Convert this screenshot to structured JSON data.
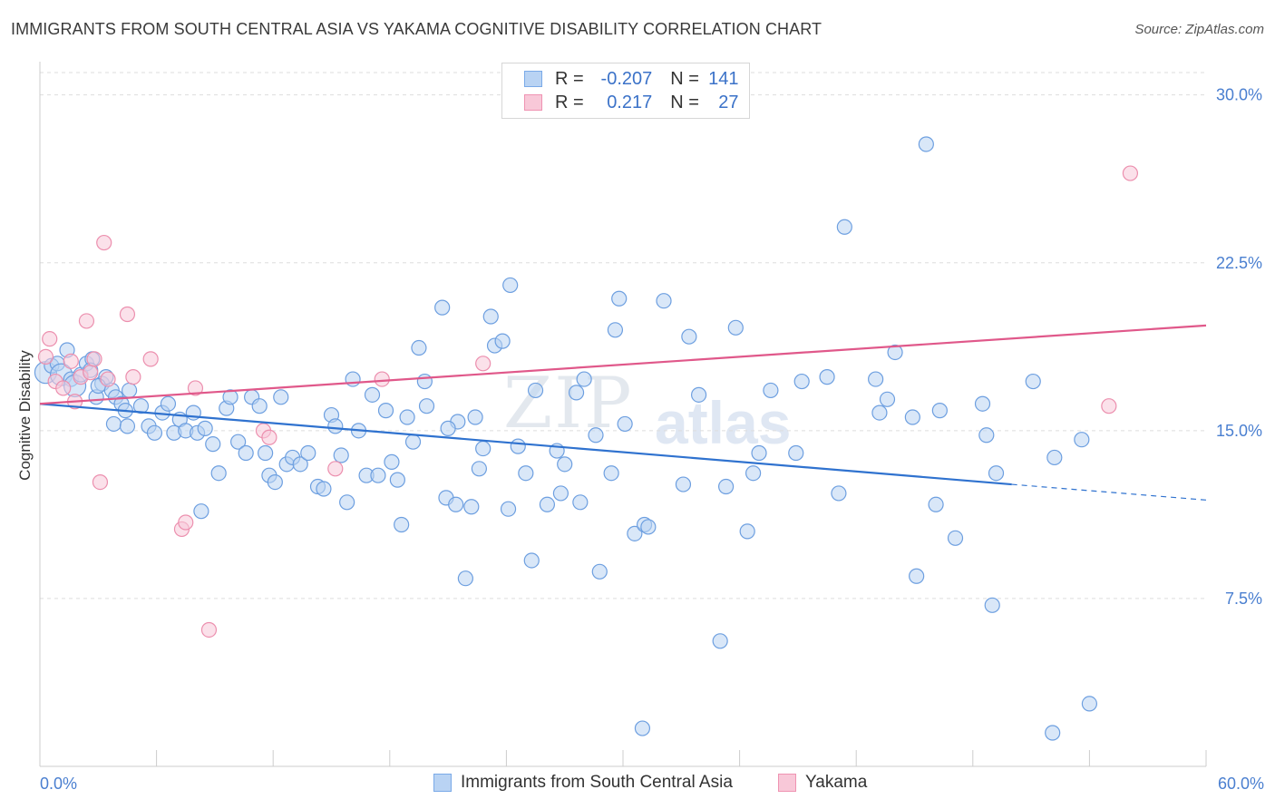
{
  "title": "IMMIGRANTS FROM SOUTH CENTRAL ASIA VS YAKAMA COGNITIVE DISABILITY CORRELATION CHART",
  "source": "Source: ZipAtlas.com",
  "watermark": {
    "zip": "ZIP",
    "atlas": "atlas"
  },
  "legend": {
    "rows": [
      {
        "r_label": "R =",
        "r_value": "-0.207",
        "n_label": "N =",
        "n_value": "141",
        "color": "#7aaae8",
        "fill": "#b9d3f3"
      },
      {
        "r_label": "R =",
        "r_value": "0.217",
        "n_label": "N =",
        "n_value": "27",
        "color": "#ef93b2",
        "fill": "#f8c8d8"
      }
    ]
  },
  "bottom_legend": [
    {
      "label": "Immigrants from South Central Asia"
    },
    {
      "label": "Yakama"
    }
  ],
  "chart_data": {
    "type": "scatter",
    "title": "IMMIGRANTS FROM SOUTH CENTRAL ASIA VS YAKAMA COGNITIVE DISABILITY CORRELATION CHART",
    "xlabel": "",
    "ylabel": "Cognitive Disability",
    "xlim": [
      0,
      60
    ],
    "ylim": [
      0,
      31
    ],
    "x_tick_labels": [
      "0.0%",
      "60.0%"
    ],
    "y_ticks": [
      7.5,
      15.0,
      22.5,
      30.0
    ],
    "y_tick_labels": [
      "7.5%",
      "15.0%",
      "22.5%",
      "30.0%"
    ],
    "grid": "horizontal dashed",
    "legend_position": "top-center",
    "series": [
      {
        "name": "Immigrants from South Central Asia",
        "color": "#6d9fe0",
        "fill": "#b9d3f3",
        "trend": {
          "x": [
            0,
            50
          ],
          "y": [
            16.2,
            12.6
          ],
          "dashed_to": [
            60,
            11.9
          ],
          "color": "#2f72cf"
        },
        "points": [
          [
            0.3,
            17.6
          ],
          [
            0.6,
            17.9
          ],
          [
            0.9,
            18.0
          ],
          [
            1.1,
            17.5
          ],
          [
            1.4,
            18.6
          ],
          [
            1.6,
            17.3
          ],
          [
            1.8,
            17.0
          ],
          [
            2.1,
            17.5
          ],
          [
            2.4,
            18.0
          ],
          [
            2.7,
            18.2
          ],
          [
            2.9,
            16.5
          ],
          [
            3.2,
            17.1
          ],
          [
            3.4,
            17.4
          ],
          [
            3.7,
            16.8
          ],
          [
            3.9,
            16.5
          ],
          [
            4.2,
            16.2
          ],
          [
            4.4,
            15.9
          ],
          [
            4.6,
            16.8
          ],
          [
            2.6,
            17.7
          ],
          [
            3.0,
            17.0
          ],
          [
            3.8,
            15.3
          ],
          [
            4.5,
            15.2
          ],
          [
            5.2,
            16.1
          ],
          [
            5.6,
            15.2
          ],
          [
            5.9,
            14.9
          ],
          [
            6.3,
            15.8
          ],
          [
            6.6,
            16.2
          ],
          [
            6.9,
            14.9
          ],
          [
            7.2,
            15.5
          ],
          [
            7.5,
            15.0
          ],
          [
            7.9,
            15.8
          ],
          [
            8.1,
            14.9
          ],
          [
            8.5,
            15.1
          ],
          [
            8.9,
            14.4
          ],
          [
            9.2,
            13.1
          ],
          [
            9.6,
            16.0
          ],
          [
            9.8,
            16.5
          ],
          [
            10.2,
            14.5
          ],
          [
            10.6,
            14.0
          ],
          [
            10.9,
            16.5
          ],
          [
            11.3,
            16.1
          ],
          [
            11.6,
            14.0
          ],
          [
            11.8,
            13.0
          ],
          [
            12.1,
            12.7
          ],
          [
            12.4,
            16.5
          ],
          [
            12.7,
            13.5
          ],
          [
            13.0,
            13.8
          ],
          [
            13.4,
            13.5
          ],
          [
            13.8,
            14.0
          ],
          [
            14.3,
            12.5
          ],
          [
            14.6,
            12.4
          ],
          [
            15.0,
            15.7
          ],
          [
            15.2,
            15.2
          ],
          [
            15.5,
            13.9
          ],
          [
            15.8,
            11.8
          ],
          [
            16.1,
            17.3
          ],
          [
            16.4,
            15.0
          ],
          [
            16.8,
            13.0
          ],
          [
            17.1,
            16.6
          ],
          [
            17.4,
            13.0
          ],
          [
            17.8,
            15.9
          ],
          [
            18.1,
            13.6
          ],
          [
            18.4,
            12.8
          ],
          [
            18.6,
            10.8
          ],
          [
            18.9,
            15.6
          ],
          [
            19.2,
            14.5
          ],
          [
            19.5,
            18.7
          ],
          [
            19.8,
            17.2
          ],
          [
            19.9,
            16.1
          ],
          [
            20.7,
            20.5
          ],
          [
            20.9,
            12.0
          ],
          [
            21.4,
            11.7
          ],
          [
            21.5,
            15.4
          ],
          [
            21.9,
            8.4
          ],
          [
            22.2,
            11.6
          ],
          [
            22.4,
            15.6
          ],
          [
            22.6,
            13.3
          ],
          [
            22.8,
            14.2
          ],
          [
            23.2,
            20.1
          ],
          [
            23.4,
            18.8
          ],
          [
            23.8,
            19.0
          ],
          [
            24.2,
            21.5
          ],
          [
            24.6,
            14.3
          ],
          [
            25.0,
            13.1
          ],
          [
            25.3,
            9.2
          ],
          [
            25.5,
            16.8
          ],
          [
            26.1,
            11.7
          ],
          [
            26.6,
            14.1
          ],
          [
            27.0,
            13.5
          ],
          [
            27.6,
            16.7
          ],
          [
            27.8,
            11.8
          ],
          [
            28.0,
            17.3
          ],
          [
            28.6,
            14.8
          ],
          [
            28.8,
            8.7
          ],
          [
            29.4,
            13.1
          ],
          [
            29.6,
            19.5
          ],
          [
            29.8,
            20.9
          ],
          [
            30.6,
            10.4
          ],
          [
            31.1,
            10.8
          ],
          [
            31.3,
            10.7
          ],
          [
            31.0,
            1.7
          ],
          [
            32.1,
            20.8
          ],
          [
            33.4,
            19.2
          ],
          [
            33.9,
            16.6
          ],
          [
            35.0,
            5.6
          ],
          [
            35.3,
            12.5
          ],
          [
            35.8,
            19.6
          ],
          [
            36.4,
            10.5
          ],
          [
            37.0,
            14.0
          ],
          [
            37.6,
            16.8
          ],
          [
            38.9,
            14.0
          ],
          [
            40.5,
            17.4
          ],
          [
            41.1,
            12.2
          ],
          [
            41.4,
            24.1
          ],
          [
            43.2,
            15.8
          ],
          [
            43.6,
            16.4
          ],
          [
            44.0,
            18.5
          ],
          [
            44.9,
            15.6
          ],
          [
            45.1,
            8.5
          ],
          [
            45.6,
            27.8
          ],
          [
            46.1,
            11.7
          ],
          [
            46.3,
            15.9
          ],
          [
            47.1,
            10.2
          ],
          [
            48.5,
            16.2
          ],
          [
            49.0,
            7.2
          ],
          [
            48.7,
            14.8
          ],
          [
            49.2,
            13.1
          ],
          [
            51.1,
            17.2
          ],
          [
            52.2,
            13.8
          ],
          [
            53.6,
            14.6
          ],
          [
            54.0,
            2.8
          ],
          [
            52.1,
            1.5
          ],
          [
            43.0,
            17.3
          ],
          [
            39.2,
            17.2
          ],
          [
            36.7,
            13.1
          ],
          [
            33.1,
            12.6
          ],
          [
            30.1,
            15.3
          ],
          [
            26.8,
            12.2
          ],
          [
            24.1,
            11.5
          ],
          [
            21.0,
            15.1
          ],
          [
            8.3,
            11.4
          ]
        ]
      },
      {
        "name": "Yakama",
        "color": "#ec8fae",
        "fill": "#f8c8d8",
        "trend": {
          "x": [
            0,
            60
          ],
          "y": [
            16.2,
            19.7
          ],
          "color": "#e0588a"
        },
        "points": [
          [
            0.3,
            18.3
          ],
          [
            0.5,
            19.1
          ],
          [
            0.8,
            17.2
          ],
          [
            1.2,
            16.9
          ],
          [
            1.6,
            18.1
          ],
          [
            1.8,
            16.3
          ],
          [
            2.1,
            17.4
          ],
          [
            2.4,
            19.9
          ],
          [
            2.6,
            17.6
          ],
          [
            2.8,
            18.2
          ],
          [
            3.1,
            12.7
          ],
          [
            3.3,
            23.4
          ],
          [
            3.5,
            17.3
          ],
          [
            4.5,
            20.2
          ],
          [
            4.8,
            17.4
          ],
          [
            5.7,
            18.2
          ],
          [
            7.3,
            10.6
          ],
          [
            7.5,
            10.9
          ],
          [
            8.0,
            16.9
          ],
          [
            8.7,
            6.1
          ],
          [
            11.5,
            15.0
          ],
          [
            11.8,
            14.7
          ],
          [
            15.2,
            13.3
          ],
          [
            17.6,
            17.3
          ],
          [
            22.8,
            18.0
          ],
          [
            55.0,
            16.1
          ],
          [
            56.1,
            26.5
          ]
        ]
      }
    ]
  }
}
